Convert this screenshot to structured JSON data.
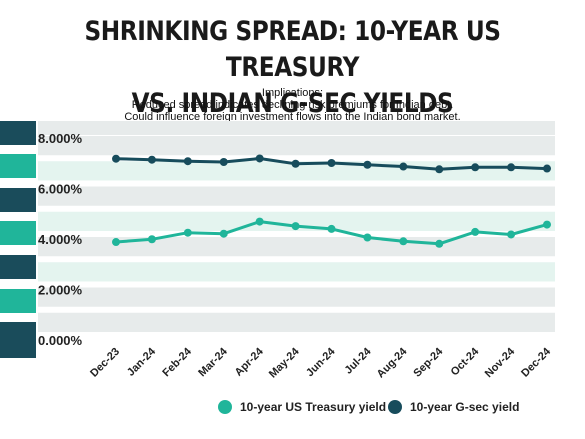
{
  "header": {
    "title_line1": "SHRINKING SPREAD: 10-YEAR US TREASURY",
    "title_line2": "VS. INDIAN G-SEC YIELDS",
    "implications_heading": "Implications:",
    "implication_1": "Reduced spread indicates declining risk premiums for Indian debt.",
    "implication_2": "Could influence foreign investment flows into the Indian bond market."
  },
  "colors": {
    "us_series": "#20b59a",
    "india_series": "#174c5c",
    "band_light": "#e7ebeb",
    "band_mint": "#e4f4ef",
    "side_dark": "#1a4c5b",
    "side_teal": "#20b59a"
  },
  "chart_data": {
    "type": "line",
    "categories": [
      "Dec-23",
      "Jan-24",
      "Feb-24",
      "Mar-24",
      "Apr-24",
      "May-24",
      "Jun-24",
      "Jul-24",
      "Aug-24",
      "Sep-24",
      "Oct-24",
      "Nov-24",
      "Dec-24"
    ],
    "series": [
      {
        "name": "10-year US Treasury yield",
        "values": [
          3.88,
          3.99,
          4.25,
          4.21,
          4.69,
          4.51,
          4.4,
          4.06,
          3.91,
          3.81,
          4.28,
          4.18,
          4.57
        ]
      },
      {
        "name": "10-year G-sec yield",
        "values": [
          7.18,
          7.14,
          7.08,
          7.05,
          7.19,
          6.98,
          7.01,
          6.94,
          6.87,
          6.76,
          6.84,
          6.84,
          6.79
        ]
      }
    ],
    "ylim": [
      0,
      8
    ],
    "yticks": [
      "0.000%",
      "2.000%",
      "4.000%",
      "6.000%",
      "8.000%"
    ],
    "legend_position": "bottom",
    "grid": true
  }
}
